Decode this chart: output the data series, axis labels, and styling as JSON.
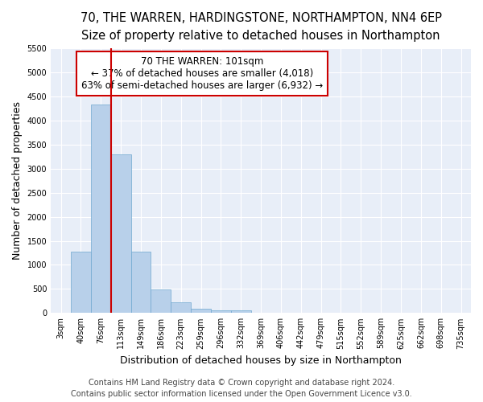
{
  "title_line1": "70, THE WARREN, HARDINGSTONE, NORTHAMPTON, NN4 6EP",
  "title_line2": "Size of property relative to detached houses in Northampton",
  "xlabel": "Distribution of detached houses by size in Northampton",
  "ylabel": "Number of detached properties",
  "categories": [
    "3sqm",
    "40sqm",
    "76sqm",
    "113sqm",
    "149sqm",
    "186sqm",
    "223sqm",
    "259sqm",
    "296sqm",
    "332sqm",
    "369sqm",
    "406sqm",
    "442sqm",
    "479sqm",
    "515sqm",
    "552sqm",
    "589sqm",
    "625sqm",
    "662sqm",
    "698sqm",
    "735sqm"
  ],
  "values": [
    0,
    1270,
    4330,
    3300,
    1280,
    490,
    215,
    85,
    60,
    55,
    0,
    0,
    0,
    0,
    0,
    0,
    0,
    0,
    0,
    0,
    0
  ],
  "bar_color": "#b8d0ea",
  "bar_edge_color": "#6fa8d0",
  "background_color": "#e8eef8",
  "grid_color": "#ffffff",
  "vline_color": "#cc0000",
  "vline_x_idx": 2,
  "annotation_line1": "70 THE WARREN: 101sqm",
  "annotation_line2": "← 37% of detached houses are smaller (4,018)",
  "annotation_line3": "63% of semi-detached houses are larger (6,932) →",
  "annotation_box_color": "#cc0000",
  "ylim": [
    0,
    5500
  ],
  "yticks": [
    0,
    500,
    1000,
    1500,
    2000,
    2500,
    3000,
    3500,
    4000,
    4500,
    5000,
    5500
  ],
  "footer_line1": "Contains HM Land Registry data © Crown copyright and database right 2024.",
  "footer_line2": "Contains public sector information licensed under the Open Government Licence v3.0.",
  "title_fontsize": 10.5,
  "subtitle_fontsize": 9.5,
  "axis_label_fontsize": 9,
  "tick_fontsize": 7,
  "annotation_fontsize": 8.5,
  "footer_fontsize": 7
}
